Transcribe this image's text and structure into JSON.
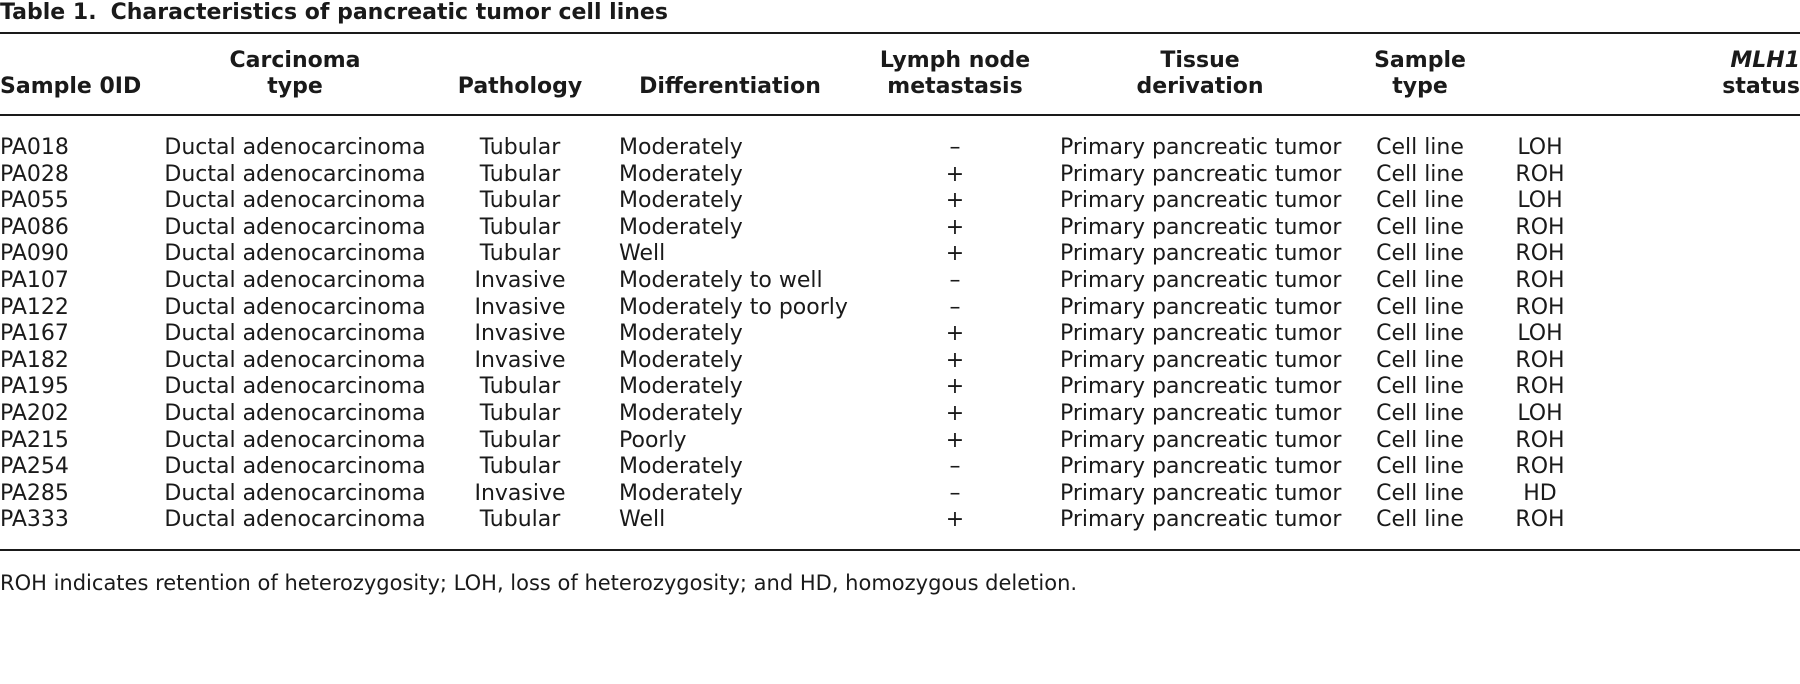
{
  "caption": {
    "number": "Table 1.",
    "title": "Characteristics of pancreatic tumor cell lines"
  },
  "headers": {
    "sample_id": [
      "Sample 0ID"
    ],
    "carcinoma_type": [
      "Carcinoma",
      "type"
    ],
    "pathology": [
      "Pathology"
    ],
    "differentiation": [
      "Differentiation"
    ],
    "lymph_node": [
      "Lymph node",
      "metastasis"
    ],
    "tissue": [
      "Tissue",
      "derivation"
    ],
    "sample_type": [
      "Sample",
      "type"
    ],
    "mlh1": [
      "MLH1",
      "status"
    ]
  },
  "rows": [
    {
      "id": "PA018",
      "carcinoma": "Ductal adenocarcinoma",
      "pathology": "Tubular",
      "differentiation": "Moderately",
      "lymph": "–",
      "tissue": "Primary pancreatic tumor",
      "sample_type": "Cell line",
      "mlh1": "LOH"
    },
    {
      "id": "PA028",
      "carcinoma": "Ductal adenocarcinoma",
      "pathology": "Tubular",
      "differentiation": "Moderately",
      "lymph": "+",
      "tissue": "Primary pancreatic tumor",
      "sample_type": "Cell line",
      "mlh1": "ROH"
    },
    {
      "id": "PA055",
      "carcinoma": "Ductal adenocarcinoma",
      "pathology": "Tubular",
      "differentiation": "Moderately",
      "lymph": "+",
      "tissue": "Primary pancreatic tumor",
      "sample_type": "Cell line",
      "mlh1": "LOH"
    },
    {
      "id": "PA086",
      "carcinoma": "Ductal adenocarcinoma",
      "pathology": "Tubular",
      "differentiation": "Moderately",
      "lymph": "+",
      "tissue": "Primary pancreatic tumor",
      "sample_type": "Cell line",
      "mlh1": "ROH"
    },
    {
      "id": "PA090",
      "carcinoma": "Ductal adenocarcinoma",
      "pathology": "Tubular",
      "differentiation": "Well",
      "lymph": "+",
      "tissue": "Primary pancreatic tumor",
      "sample_type": "Cell line",
      "mlh1": "ROH"
    },
    {
      "id": "PA107",
      "carcinoma": "Ductal adenocarcinoma",
      "pathology": "Invasive",
      "differentiation": "Moderately to well",
      "lymph": "–",
      "tissue": "Primary pancreatic tumor",
      "sample_type": "Cell line",
      "mlh1": "ROH"
    },
    {
      "id": "PA122",
      "carcinoma": "Ductal adenocarcinoma",
      "pathology": "Invasive",
      "differentiation": "Moderately to poorly",
      "lymph": "–",
      "tissue": "Primary pancreatic tumor",
      "sample_type": "Cell line",
      "mlh1": "ROH"
    },
    {
      "id": "PA167",
      "carcinoma": "Ductal adenocarcinoma",
      "pathology": "Invasive",
      "differentiation": "Moderately",
      "lymph": "+",
      "tissue": "Primary pancreatic tumor",
      "sample_type": "Cell line",
      "mlh1": "LOH"
    },
    {
      "id": "PA182",
      "carcinoma": "Ductal adenocarcinoma",
      "pathology": "Invasive",
      "differentiation": "Moderately",
      "lymph": "+",
      "tissue": "Primary pancreatic tumor",
      "sample_type": "Cell line",
      "mlh1": "ROH"
    },
    {
      "id": "PA195",
      "carcinoma": "Ductal adenocarcinoma",
      "pathology": "Tubular",
      "differentiation": "Moderately",
      "lymph": "+",
      "tissue": "Primary pancreatic tumor",
      "sample_type": "Cell line",
      "mlh1": "ROH"
    },
    {
      "id": "PA202",
      "carcinoma": "Ductal adenocarcinoma",
      "pathology": "Tubular",
      "differentiation": "Moderately",
      "lymph": "+",
      "tissue": "Primary pancreatic tumor",
      "sample_type": "Cell line",
      "mlh1": "LOH"
    },
    {
      "id": "PA215",
      "carcinoma": "Ductal adenocarcinoma",
      "pathology": "Tubular",
      "differentiation": "Poorly",
      "lymph": "+",
      "tissue": "Primary pancreatic tumor",
      "sample_type": "Cell line",
      "mlh1": "ROH"
    },
    {
      "id": "PA254",
      "carcinoma": "Ductal adenocarcinoma",
      "pathology": "Tubular",
      "differentiation": "Moderately",
      "lymph": "–",
      "tissue": "Primary pancreatic tumor",
      "sample_type": "Cell line",
      "mlh1": "ROH"
    },
    {
      "id": "PA285",
      "carcinoma": "Ductal adenocarcinoma",
      "pathology": "Invasive",
      "differentiation": "Moderately",
      "lymph": "–",
      "tissue": "Primary pancreatic tumor",
      "sample_type": "Cell line",
      "mlh1": "HD"
    },
    {
      "id": "PA333",
      "carcinoma": "Ductal adenocarcinoma",
      "pathology": "Tubular",
      "differentiation": "Well",
      "lymph": "+",
      "tissue": "Primary pancreatic tumor",
      "sample_type": "Cell line",
      "mlh1": "ROH"
    }
  ],
  "footnote": "ROH indicates retention of heterozygosity; LOH, loss of heterozygosity; and HD, homozygous deletion."
}
